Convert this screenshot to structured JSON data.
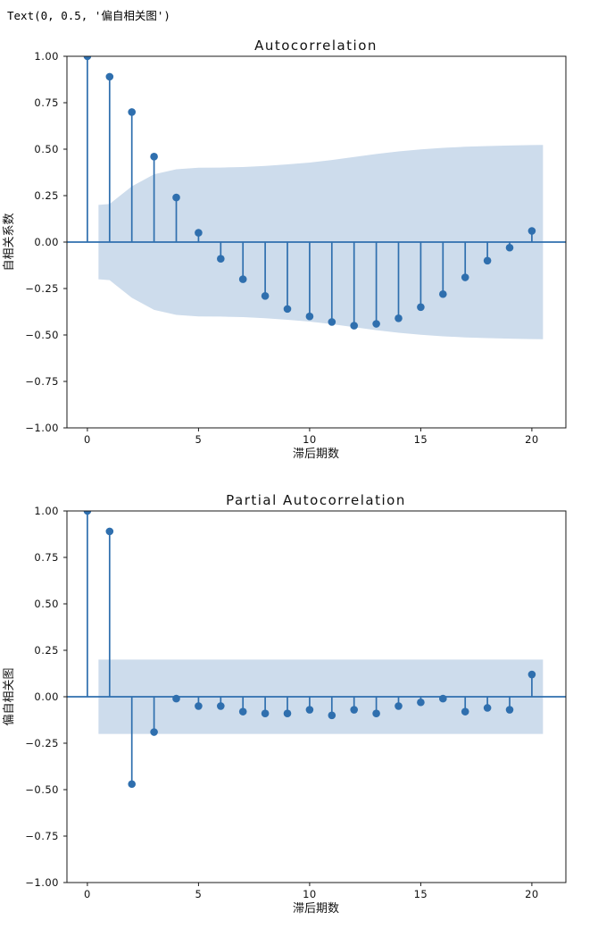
{
  "output_text": "Text(0, 0.5, '偏自相关图')",
  "colors": {
    "stem": "#2f6fae",
    "marker": "#2f6fae",
    "band": "#cddcec",
    "frame": "#1a1a1a",
    "tick_text": "#111111"
  },
  "chart_data": [
    {
      "type": "stem",
      "title": "Autocorrelation",
      "xlabel": "滞后期数",
      "ylabel": "自相关系数",
      "x": [
        0,
        1,
        2,
        3,
        4,
        5,
        6,
        7,
        8,
        9,
        10,
        11,
        12,
        13,
        14,
        15,
        16,
        17,
        18,
        19,
        20
      ],
      "values": [
        1.0,
        0.89,
        0.7,
        0.46,
        0.24,
        0.05,
        -0.09,
        -0.2,
        -0.29,
        -0.36,
        -0.4,
        -0.43,
        -0.45,
        -0.44,
        -0.41,
        -0.35,
        -0.28,
        -0.19,
        -0.1,
        -0.03,
        0.06
      ],
      "conf_band": {
        "lags": [
          0.5,
          1,
          2,
          3,
          4,
          5,
          6,
          7,
          8,
          9,
          10,
          11,
          12,
          13,
          14,
          15,
          16,
          17,
          18,
          19,
          20,
          20.5
        ],
        "upper": [
          0.2,
          0.205,
          0.3,
          0.365,
          0.392,
          0.4,
          0.401,
          0.404,
          0.41,
          0.418,
          0.428,
          0.442,
          0.458,
          0.474,
          0.488,
          0.499,
          0.507,
          0.513,
          0.517,
          0.52,
          0.522,
          0.523
        ]
      },
      "xlim": [
        -0.92,
        21.53
      ],
      "ylim": [
        -1.0,
        1.0
      ],
      "xtick_values": [
        0,
        5,
        10,
        15,
        20
      ],
      "xtick_labels": [
        "0",
        "5",
        "10",
        "15",
        "20"
      ],
      "ytick_values": [
        1.0,
        0.75,
        0.5,
        0.25,
        0.0,
        -0.25,
        -0.5,
        -0.75,
        -1.0
      ],
      "ytick_labels": [
        "1.00",
        "0.75",
        "0.50",
        "0.25",
        "0.00",
        "−0.25",
        "−0.50",
        "−0.75",
        "−1.00"
      ],
      "grid": false,
      "legend": null
    },
    {
      "type": "stem",
      "title": "Partial Autocorrelation",
      "xlabel": "滞后期数",
      "ylabel": "偏自相关图",
      "x": [
        0,
        1,
        2,
        3,
        4,
        5,
        6,
        7,
        8,
        9,
        10,
        11,
        12,
        13,
        14,
        15,
        16,
        17,
        18,
        19,
        20
      ],
      "values": [
        1.0,
        0.89,
        -0.47,
        -0.19,
        -0.01,
        -0.05,
        -0.05,
        -0.08,
        -0.09,
        -0.09,
        -0.07,
        -0.1,
        -0.07,
        -0.09,
        -0.05,
        -0.03,
        -0.01,
        -0.08,
        -0.06,
        -0.07,
        0.12
      ],
      "conf_band": {
        "lags": [
          0.5,
          20.5
        ],
        "upper": [
          0.2,
          0.2
        ]
      },
      "xlim": [
        -0.92,
        21.53
      ],
      "ylim": [
        -1.0,
        1.0
      ],
      "xtick_values": [
        0,
        5,
        10,
        15,
        20
      ],
      "xtick_labels": [
        "0",
        "5",
        "10",
        "15",
        "20"
      ],
      "ytick_values": [
        1.0,
        0.75,
        0.5,
        0.25,
        0.0,
        -0.25,
        -0.5,
        -0.75,
        -1.0
      ],
      "ytick_labels": [
        "1.00",
        "0.75",
        "0.50",
        "0.25",
        "0.00",
        "−0.25",
        "−0.50",
        "−0.75",
        "−1.00"
      ],
      "grid": false,
      "legend": null
    }
  ]
}
